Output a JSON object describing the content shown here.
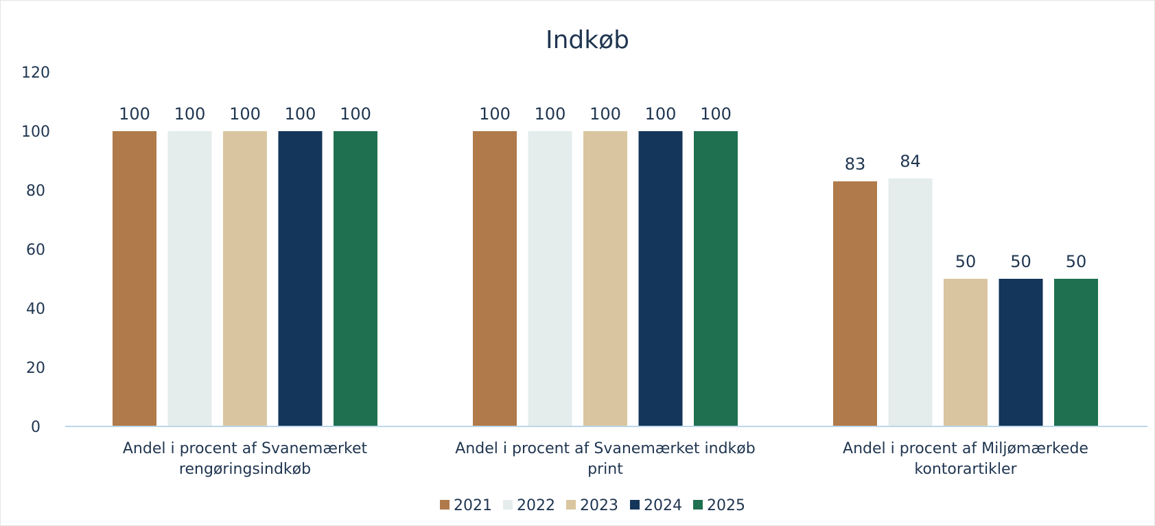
{
  "chart_data": {
    "type": "bar",
    "title": "Indkøb",
    "xlabel": "",
    "ylabel": "",
    "ylim": [
      0,
      120
    ],
    "yticks": [
      0,
      20,
      40,
      60,
      80,
      100,
      120
    ],
    "categories": [
      [
        "Andel i procent af Svanemærket",
        "rengøringsindkøb"
      ],
      [
        "Andel i procent af Svanemærket indkøb",
        "print"
      ],
      [
        "Andel i procent af Miljømærkede",
        "kontorartikler"
      ]
    ],
    "series": [
      {
        "name": "2021",
        "color": "#B07A4A",
        "values": [
          100,
          100,
          83
        ]
      },
      {
        "name": "2022",
        "color": "#E4ECEC",
        "values": [
          100,
          100,
          84
        ]
      },
      {
        "name": "2023",
        "color": "#D9C6A0",
        "values": [
          100,
          100,
          50
        ]
      },
      {
        "name": "2024",
        "color": "#14365A",
        "values": [
          100,
          100,
          50
        ]
      },
      {
        "name": "2025",
        "color": "#1F7050",
        "values": [
          100,
          100,
          50
        ]
      }
    ],
    "grid": false,
    "legend": "bottom"
  }
}
